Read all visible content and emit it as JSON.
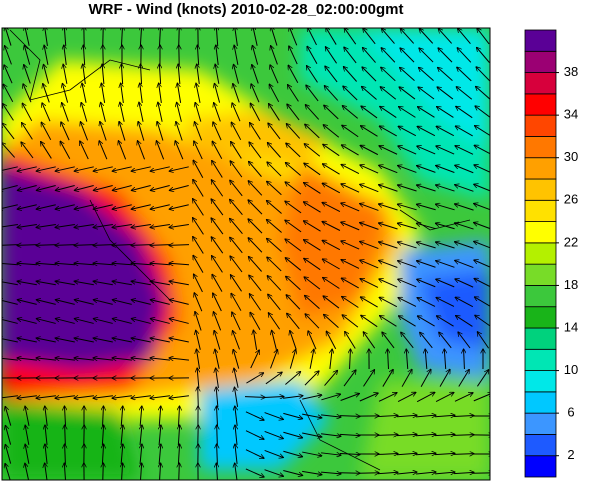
{
  "title": "WRF - Wind (knots) 2010-02-28_02:00:00gmt",
  "colorbar": {
    "lim": [
      0,
      42
    ],
    "step": 2,
    "ticks": [
      2,
      6,
      10,
      14,
      18,
      22,
      26,
      30,
      34,
      38
    ],
    "colors": [
      "#0000ff",
      "#1e5aff",
      "#3c96ff",
      "#00c8ff",
      "#00e8e8",
      "#00e6b4",
      "#00d27d",
      "#19b419",
      "#3cc83c",
      "#78dc28",
      "#b4f000",
      "#ffff00",
      "#ffe100",
      "#ffc300",
      "#ffa000",
      "#ff7800",
      "#ff4600",
      "#ff0000",
      "#d7003c",
      "#9b0073",
      "#5a0096"
    ]
  }
}
